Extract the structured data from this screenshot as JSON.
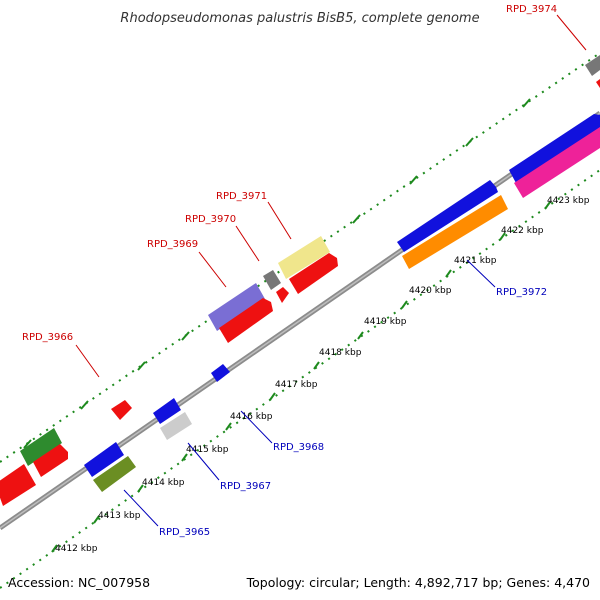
{
  "title": "Rhodopseudomonas palustris BisB5, complete genome",
  "footer": {
    "accession": "Accession: NC_007958",
    "summary": "Topology: circular; Length: 4,892,717 bp; Genes: 4,470"
  },
  "scale_labels": [
    "4412 kbp",
    "4413 kbp",
    "4414 kbp",
    "4415 kbp",
    "4416 kbp",
    "4417 kbp",
    "4418 kbp",
    "4419 kbp",
    "4420 kbp",
    "4421 kbp",
    "4422 kbp",
    "4423 kbp"
  ],
  "gene_labels": {
    "RPD_3965": "RPD_3965",
    "RPD_3966": "RPD_3966",
    "RPD_3967": "RPD_3967",
    "RPD_3968": "RPD_3968",
    "RPD_3969": "RPD_3969",
    "RPD_3970": "RPD_3970",
    "RPD_3971": "RPD_3971",
    "RPD_3972": "RPD_3972",
    "RPD_3974": "RPD_3974"
  },
  "colors": {
    "backbone": "#8c8c8c",
    "tick": "#1e8a1e",
    "label_forward": "#cc0000",
    "label_reverse": "#0000bb",
    "red": "#ee1111",
    "blue": "#1111dd",
    "green": "#2e8b2e",
    "olive": "#6b8e23",
    "grey": "#777777",
    "light_grey": "#cccccc",
    "lavender": "#7a6ed4",
    "pale_yellow": "#f0e68c",
    "orange": "#ff8c00",
    "magenta": "#ee2299"
  }
}
